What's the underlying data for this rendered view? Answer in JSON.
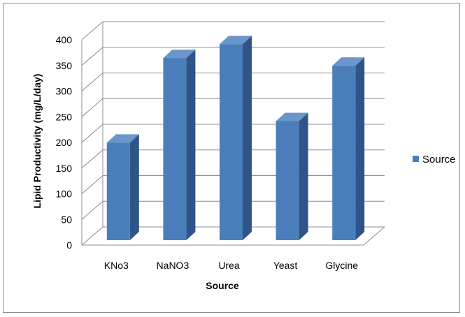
{
  "chart_data": {
    "type": "bar",
    "categories": [
      "KNo3",
      "NaNO3",
      "Urea",
      "Yeast",
      "Glycine"
    ],
    "series": [
      {
        "name": "Source",
        "values": [
          190,
          355,
          382,
          232,
          340
        ]
      }
    ],
    "title": "",
    "xlabel": "Source",
    "ylabel": "Lipid Productivity (mg/L/day)",
    "ylim": [
      0,
      400
    ],
    "yticks": [
      "0",
      "50",
      "100",
      "150",
      "200",
      "250",
      "300",
      "350",
      "400"
    ],
    "grid": true,
    "legend_position": "right",
    "style": "3d-column",
    "colors": {
      "bar_front": "#4a7ebb",
      "bar_side": "#2f5487",
      "bar_top": "#6b96cc",
      "grid": "#8c8c8c"
    }
  }
}
